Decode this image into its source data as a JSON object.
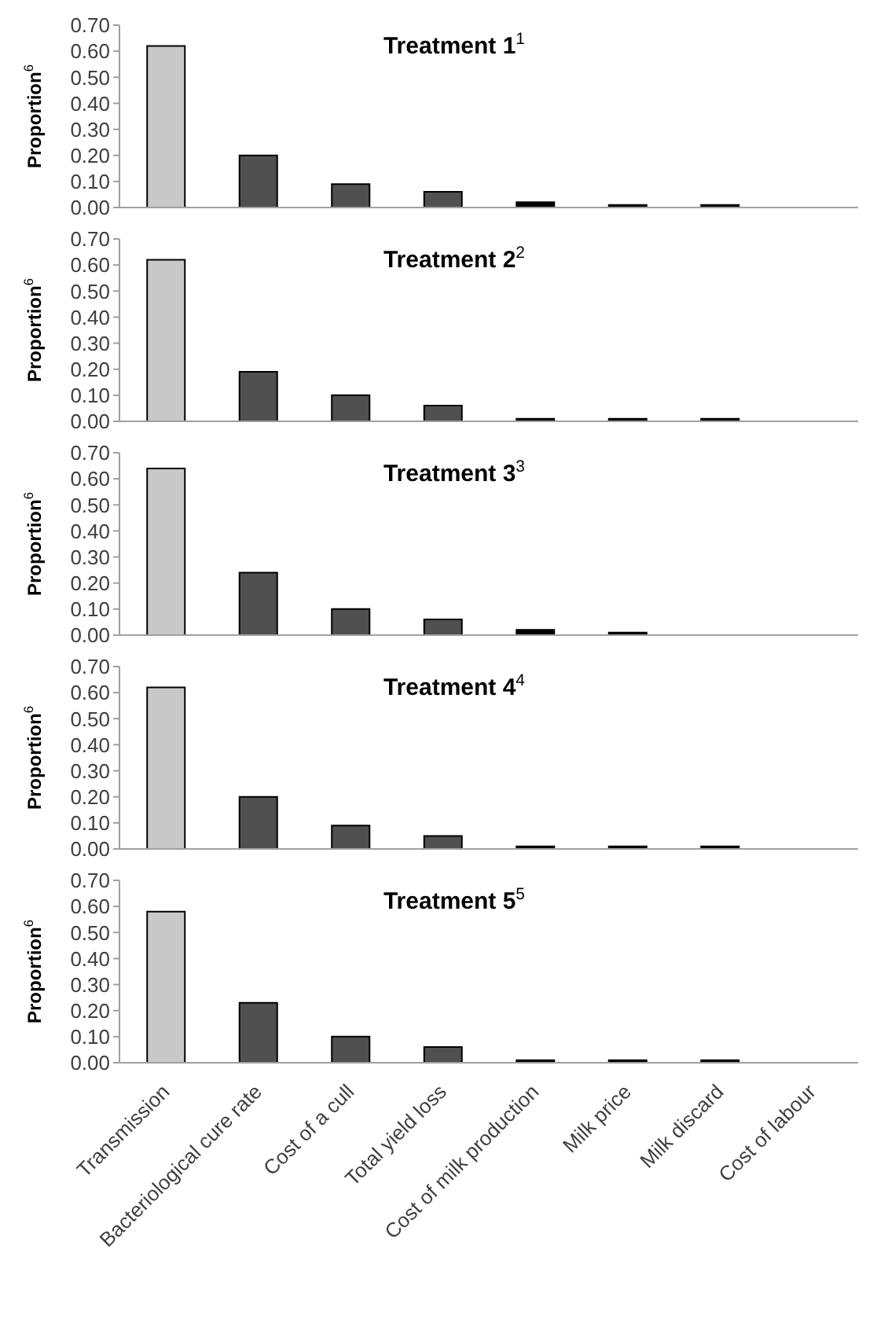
{
  "chart_data": [
    {
      "type": "bar",
      "title": "Treatment 1$^{1}$",
      "ylabel": "Proportion$^{6}$",
      "categories": [
        null,
        null,
        null,
        null,
        null,
        null,
        null,
        null
      ],
      "values": [
        0.62,
        0.2,
        0.09,
        0.06,
        0.02,
        0.01,
        0.01,
        0.0
      ],
      "colors": [
        "#c8c8c8",
        "#505050",
        "#505050",
        "#505050",
        "#000000",
        "#000000",
        "#000000",
        "#000000"
      ],
      "ylim": [
        0,
        0.7
      ],
      "yticks": [
        {
          "value": 0,
          "label": "0.00"
        },
        {
          "value": 0.1,
          "label": "0.10"
        },
        {
          "value": 0.2,
          "label": "0.20"
        },
        {
          "value": 0.3,
          "label": "0.30"
        },
        {
          "value": 0.4,
          "label": "0.40"
        },
        {
          "value": 0.5,
          "label": "0.50"
        },
        {
          "value": 0.6,
          "label": "0.60"
        },
        {
          "value": 0.7,
          "label": "0.70"
        }
      ],
      "grid": false,
      "legend": false,
      "tick_labels": "y"
    },
    {
      "type": "bar",
      "title": "Treatment 2$^{2}$",
      "ylabel": "Proportion$^{6}$",
      "categories": [
        null,
        null,
        null,
        null,
        null,
        null,
        null,
        null
      ],
      "values": [
        0.62,
        0.19,
        0.1,
        0.06,
        0.01,
        0.01,
        0.01,
        0.0
      ],
      "colors": [
        "#c8c8c8",
        "#505050",
        "#505050",
        "#505050",
        "#000000",
        "#000000",
        "#000000",
        "#000000"
      ],
      "ylim": [
        0,
        0.7
      ],
      "yticks": [
        {
          "value": 0,
          "label": "0.00"
        },
        {
          "value": 0.1,
          "label": "0.10"
        },
        {
          "value": 0.2,
          "label": "0.20"
        },
        {
          "value": 0.3,
          "label": "0.30"
        },
        {
          "value": 0.4,
          "label": "0.40"
        },
        {
          "value": 0.5,
          "label": "0.50"
        },
        {
          "value": 0.6,
          "label": "0.60"
        },
        {
          "value": 0.7,
          "label": "0.70"
        }
      ],
      "grid": false,
      "legend": false,
      "tick_labels": "y"
    },
    {
      "type": "bar",
      "title": "Treatment 3$^{3}$",
      "ylabel": "Proportion$^{6}$",
      "categories": [
        null,
        null,
        null,
        null,
        null,
        null,
        null,
        null
      ],
      "values": [
        0.64,
        0.24,
        0.1,
        0.06,
        0.02,
        0.01,
        0.0,
        0.0
      ],
      "colors": [
        "#c8c8c8",
        "#505050",
        "#505050",
        "#505050",
        "#000000",
        "#000000",
        "#000000",
        "#000000"
      ],
      "ylim": [
        0,
        0.7
      ],
      "yticks": [
        {
          "value": 0,
          "label": "0.00"
        },
        {
          "value": 0.1,
          "label": "0.10"
        },
        {
          "value": 0.2,
          "label": "0.20"
        },
        {
          "value": 0.3,
          "label": "0.30"
        },
        {
          "value": 0.4,
          "label": "0.40"
        },
        {
          "value": 0.5,
          "label": "0.50"
        },
        {
          "value": 0.6,
          "label": "0.60"
        },
        {
          "value": 0.7,
          "label": "0.70"
        }
      ],
      "grid": false,
      "legend": false,
      "tick_labels": "y"
    },
    {
      "type": "bar",
      "title": "Treatment 4$^{4}$",
      "ylabel": "Proportion$^{6}$",
      "categories": [
        null,
        null,
        null,
        null,
        null,
        null,
        null,
        null
      ],
      "values": [
        0.62,
        0.2,
        0.09,
        0.05,
        0.01,
        0.01,
        0.01,
        0.0
      ],
      "colors": [
        "#c8c8c8",
        "#505050",
        "#505050",
        "#505050",
        "#000000",
        "#000000",
        "#000000",
        "#000000"
      ],
      "ylim": [
        0,
        0.7
      ],
      "yticks": [
        {
          "value": 0,
          "label": "0.00"
        },
        {
          "value": 0.1,
          "label": "0.10"
        },
        {
          "value": 0.2,
          "label": "0.20"
        },
        {
          "value": 0.3,
          "label": "0.30"
        },
        {
          "value": 0.4,
          "label": "0.40"
        },
        {
          "value": 0.5,
          "label": "0.50"
        },
        {
          "value": 0.6,
          "label": "0.60"
        },
        {
          "value": 0.7,
          "label": "0.70"
        }
      ],
      "grid": false,
      "legend": false,
      "tick_labels": "y"
    },
    {
      "type": "bar",
      "title": "Treatment 5$^{5}$",
      "ylabel": "Proportion$^{6}$",
      "categories": [
        "Transmission",
        "Bacteriological cure rate",
        "Cost of a cull",
        "Total yield loss",
        "Cost of milk production",
        "Milk price",
        "Milk discard",
        "Cost of labour"
      ],
      "values": [
        0.58,
        0.23,
        0.1,
        0.06,
        0.01,
        0.01,
        0.01,
        0.0
      ],
      "colors": [
        "#c8c8c8",
        "#505050",
        "#505050",
        "#505050",
        "#000000",
        "#000000",
        "#000000",
        "#000000"
      ],
      "ylim": [
        0,
        0.7
      ],
      "yticks": [
        {
          "value": 0,
          "label": "0.00"
        },
        {
          "value": 0.1,
          "label": "0.10"
        },
        {
          "value": 0.2,
          "label": "0.20"
        },
        {
          "value": 0.3,
          "label": "0.30"
        },
        {
          "value": 0.4,
          "label": "0.40"
        },
        {
          "value": 0.5,
          "label": "0.50"
        },
        {
          "value": 0.6,
          "label": "0.60"
        },
        {
          "value": 0.7,
          "label": "0.70"
        }
      ],
      "grid": false,
      "legend": false
    }
  ]
}
